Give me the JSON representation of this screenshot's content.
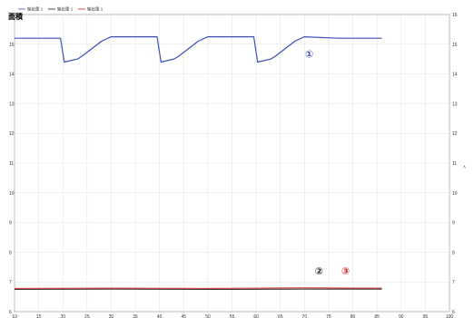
{
  "chart_data": {
    "type": "line",
    "title": "面積",
    "legend": [
      "輸出量 1",
      "輸出量 1",
      "輸出量 1"
    ],
    "legend_position": "top-left",
    "grid": true,
    "xlim": [
      10,
      100
    ],
    "x_ticks": [
      "10",
      "15",
      "20",
      "25",
      "30",
      "35",
      "40",
      "45",
      "50",
      "55",
      "60",
      "65",
      "70",
      "75",
      "80",
      "85",
      "90",
      "95",
      "100"
    ],
    "ylim": [
      6,
      16
    ],
    "y_ticks": [
      "6",
      "7",
      "8",
      "9",
      "10",
      "11",
      "12",
      "13",
      "14",
      "15",
      "16"
    ],
    "series": [
      {
        "color": "#3b4fb8",
        "x": [
          10,
          19.5,
          20.3,
          23,
          24,
          28,
          30,
          36,
          39.5,
          40.3,
          43,
          44,
          48,
          50,
          56,
          59.5,
          60.3,
          63,
          64,
          68,
          70,
          77,
          86
        ],
        "values": [
          15.2,
          15.2,
          14.4,
          14.5,
          14.6,
          15.1,
          15.25,
          15.25,
          15.25,
          14.4,
          14.5,
          14.6,
          15.1,
          15.25,
          15.25,
          15.25,
          14.4,
          14.5,
          14.6,
          15.1,
          15.25,
          15.2,
          15.2
        ]
      },
      {
        "color": "#222222",
        "x": [
          10,
          30,
          50,
          70,
          86
        ],
        "values": [
          6.75,
          6.76,
          6.75,
          6.76,
          6.76
        ]
      },
      {
        "color": "#d42424",
        "x": [
          10,
          30,
          50,
          70,
          86
        ],
        "values": [
          6.78,
          6.79,
          6.78,
          6.8,
          6.79
        ]
      }
    ],
    "markers": [
      {
        "label": "①",
        "color": "#3b4fb8",
        "x": 71,
        "y": 14.55
      },
      {
        "label": "②",
        "color": "#222222",
        "x": 73,
        "y": 7.25
      },
      {
        "label": "③",
        "color": "#d42424",
        "x": 78.5,
        "y": 7.25
      }
    ]
  }
}
